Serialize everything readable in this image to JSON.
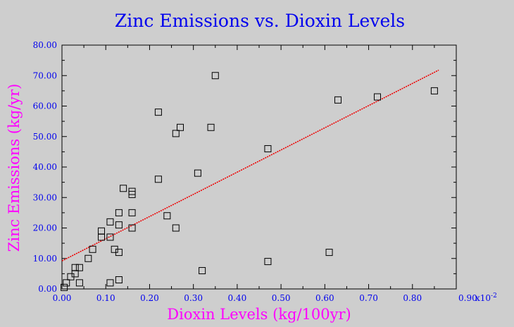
{
  "colors": {
    "background": "#cecece",
    "title": "#0000ee",
    "axis_title": "#ff00ff",
    "tick_label": "#0000ee",
    "trend_line": "#ee0000",
    "marker": "#000000"
  },
  "chart_data": {
    "type": "scatter",
    "title": "Zinc Emissions vs. Dioxin Levels",
    "xlabel": "Dioxin Levels (kg/100yr)",
    "ylabel": "Zinc Emissions (kg/yr)",
    "x_scale_note": "x10",
    "x_scale_exponent": "-2",
    "xlim": [
      0,
      0.9
    ],
    "ylim": [
      0,
      80
    ],
    "x_ticks": [
      "0.00",
      "0.10",
      "0.20",
      "0.30",
      "0.40",
      "0.50",
      "0.60",
      "0.70",
      "0.80",
      "0.90"
    ],
    "y_ticks": [
      "0.00",
      "10.00",
      "20.00",
      "30.00",
      "40.00",
      "50.00",
      "60.00",
      "70.00",
      "80.00"
    ],
    "grid": false,
    "marker": "open-square",
    "points": [
      {
        "x": 0.005,
        "y": 0.5
      },
      {
        "x": 0.01,
        "y": 2
      },
      {
        "x": 0.02,
        "y": 4
      },
      {
        "x": 0.03,
        "y": 5
      },
      {
        "x": 0.03,
        "y": 7
      },
      {
        "x": 0.04,
        "y": 2
      },
      {
        "x": 0.04,
        "y": 7
      },
      {
        "x": 0.06,
        "y": 10
      },
      {
        "x": 0.07,
        "y": 13
      },
      {
        "x": 0.09,
        "y": 17
      },
      {
        "x": 0.09,
        "y": 19
      },
      {
        "x": 0.11,
        "y": 2
      },
      {
        "x": 0.11,
        "y": 17
      },
      {
        "x": 0.11,
        "y": 22
      },
      {
        "x": 0.12,
        "y": 13
      },
      {
        "x": 0.13,
        "y": 3
      },
      {
        "x": 0.13,
        "y": 12
      },
      {
        "x": 0.13,
        "y": 21
      },
      {
        "x": 0.13,
        "y": 25
      },
      {
        "x": 0.14,
        "y": 33
      },
      {
        "x": 0.16,
        "y": 20
      },
      {
        "x": 0.16,
        "y": 25
      },
      {
        "x": 0.16,
        "y": 31
      },
      {
        "x": 0.16,
        "y": 32
      },
      {
        "x": 0.22,
        "y": 36
      },
      {
        "x": 0.22,
        "y": 58
      },
      {
        "x": 0.24,
        "y": 24
      },
      {
        "x": 0.26,
        "y": 20
      },
      {
        "x": 0.26,
        "y": 51
      },
      {
        "x": 0.27,
        "y": 53
      },
      {
        "x": 0.31,
        "y": 38
      },
      {
        "x": 0.32,
        "y": 6
      },
      {
        "x": 0.34,
        "y": 53
      },
      {
        "x": 0.35,
        "y": 70
      },
      {
        "x": 0.47,
        "y": 9
      },
      {
        "x": 0.47,
        "y": 46
      },
      {
        "x": 0.61,
        "y": 12
      },
      {
        "x": 0.63,
        "y": 62
      },
      {
        "x": 0.72,
        "y": 63
      },
      {
        "x": 0.85,
        "y": 65
      }
    ],
    "trend_line": {
      "x": [
        0.0,
        0.86
      ],
      "y": [
        9.2,
        71.8
      ]
    }
  }
}
